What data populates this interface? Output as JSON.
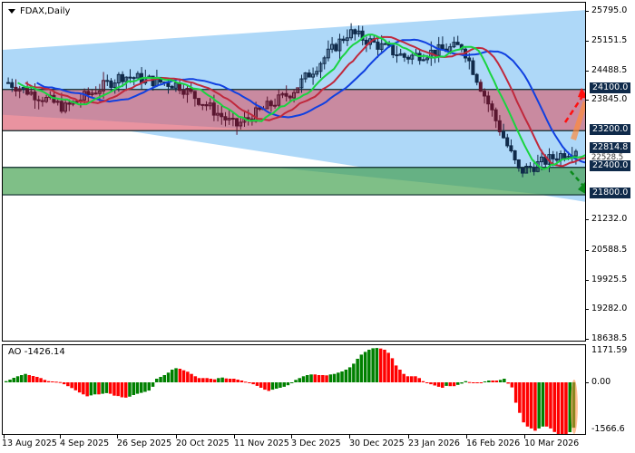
{
  "window": {
    "title": "FDAX,Daily"
  },
  "indicator": {
    "name": "AO",
    "value": "-1426.14",
    "label": "AO -1426.14"
  },
  "price_axis": {
    "ticks": [
      "25795.0",
      "25151.5",
      "24488.5",
      "23845.0",
      "22814.8",
      "22528.5",
      "21232.0",
      "20588.5",
      "19925.5",
      "19282.0",
      "18638.5"
    ],
    "highlighted": [
      "24100.0",
      "23200.0",
      "22400.0",
      "21800.0"
    ]
  },
  "ao_axis": {
    "ticks": [
      "1171.59",
      "0.00",
      "-1566.6"
    ]
  },
  "time_axis": {
    "labels": [
      "13 Aug 2025",
      "4 Sep 2025",
      "26 Sep 2025",
      "20 Oct 2025",
      "11 Nov 2025",
      "3 Dec 2025",
      "30 Dec 2025",
      "23 Jan 2026",
      "16 Feb 2026",
      "10 Mar 2026"
    ]
  },
  "colors": {
    "channel_fill": "#aed8f8",
    "resistance_zone": "#c98aa0",
    "support_zone": "#7fbf87",
    "bull_candle": "#0f2a4a",
    "bear_candle": "#5a1630",
    "ma_fast": "#19d440",
    "ma_mid": "#c0283c",
    "ma_slow": "#1040e0",
    "ao_up": "#008000",
    "ao_down": "#ff0000",
    "label_bg": "#0f2a4a"
  },
  "chart_data": [
    {
      "type": "candlestick",
      "title": "FDAX,Daily",
      "xlabel": "",
      "ylabel": "",
      "x_ticks": [
        "13 Aug 2025",
        "4 Sep 2025",
        "26 Sep 2025",
        "20 Oct 2025",
        "11 Nov 2025",
        "3 Dec 2025",
        "30 Dec 2025",
        "23 Jan 2026",
        "16 Feb 2026",
        "10 Mar 2026"
      ],
      "ylim": [
        18480,
        25950
      ],
      "y_ticks": [
        25795.0,
        25151.5,
        24488.5,
        23845.0,
        23200.0,
        22528.5,
        21232.0,
        20588.5,
        19925.5,
        19282.0,
        18638.5
      ],
      "current_price": 22814.8,
      "approx_close_path": [
        {
          "date": "13 Aug 2025",
          "close": 24250
        },
        {
          "date": "4 Sep 2025",
          "close": 23700
        },
        {
          "date": "26 Sep 2025",
          "close": 24400
        },
        {
          "date": "20 Oct 2025",
          "close": 24200
        },
        {
          "date": "11 Nov 2025",
          "close": 23300
        },
        {
          "date": "3 Dec 2025",
          "close": 24050
        },
        {
          "date": "30 Dec 2025",
          "close": 25350
        },
        {
          "date": "23 Jan 2026",
          "close": 24800
        },
        {
          "date": "16 Feb 2026",
          "close": 25050
        },
        {
          "date": "10 Mar 2026",
          "close": 22300
        },
        {
          "date": "last",
          "close": 22814.8
        }
      ],
      "levels": [
        {
          "name": "resistance_upper",
          "value": 24100.0
        },
        {
          "name": "resistance_lower",
          "value": 23200.0
        },
        {
          "name": "support_upper",
          "value": 22400.0
        },
        {
          "name": "support_lower",
          "value": 21800.0
        }
      ],
      "zones": [
        {
          "name": "resistance zone",
          "from": 23200.0,
          "to": 24100.0,
          "color": "#c98aa0"
        },
        {
          "name": "support zone",
          "from": 21800.0,
          "to": 22400.0,
          "color": "#7fbf87"
        }
      ],
      "series": [
        {
          "name": "MA fast (green)",
          "color": "#19d440"
        },
        {
          "name": "MA mid (red)",
          "color": "#c0283c"
        },
        {
          "name": "MA slow (blue)",
          "color": "#1040e0"
        }
      ],
      "annotations": [
        {
          "type": "arrow",
          "style": "dashed",
          "color": "red",
          "direction": "up",
          "target": 24100.0
        },
        {
          "type": "arrow",
          "style": "dashed",
          "color": "green",
          "direction": "down",
          "target": 21800.0
        },
        {
          "type": "channel",
          "color": "#aed8f8",
          "description": "expanding price channel"
        }
      ],
      "grid": false,
      "legend": "none"
    },
    {
      "type": "bar",
      "title": "AO -1426.14",
      "ylim": [
        -1566.6,
        1171.59
      ],
      "y_ticks": [
        1171.59,
        0.0,
        -1566.6
      ],
      "last_value": -1426.14,
      "colors": {
        "rising": "#008000",
        "falling": "#ff0000"
      },
      "values": [
        40,
        90,
        150,
        200,
        240,
        280,
        240,
        210,
        180,
        140,
        80,
        40,
        30,
        20,
        10,
        -60,
        -120,
        -180,
        -250,
        -320,
        -380,
        -440,
        -410,
        -380,
        -380,
        -360,
        -340,
        -360,
        -420,
        -430,
        -470,
        -480,
        -450,
        -400,
        -360,
        -330,
        -300,
        -260,
        -140,
        120,
        180,
        240,
        320,
        420,
        470,
        450,
        400,
        350,
        280,
        200,
        140,
        140,
        140,
        120,
        100,
        140,
        160,
        130,
        120,
        120,
        90,
        60,
        20,
        -20,
        -60,
        -110,
        -170,
        -230,
        -270,
        -230,
        -200,
        -170,
        -140,
        -90,
        -20,
        80,
        140,
        200,
        240,
        260,
        260,
        240,
        240,
        230,
        260,
        280,
        320,
        360,
        420,
        500,
        620,
        780,
        920,
        1010,
        1080,
        1130,
        1140,
        1120,
        1080,
        980,
        800,
        560,
        420,
        280,
        200,
        200,
        200,
        140,
        40,
        -20,
        -60,
        -100,
        -140,
        -170,
        -110,
        -120,
        -120,
        -80,
        -40,
        40,
        10,
        -10,
        -20,
        -20,
        30,
        60,
        60,
        60,
        80,
        120,
        -40,
        -160,
        -640,
        -960,
        -1260,
        -1390,
        -1450,
        -1520,
        -1450,
        -1390,
        -1390,
        -1450,
        -1560,
        -1640,
        -1740,
        -1820,
        -1566,
        -1426
      ],
      "xlabel": "",
      "ylabel": ""
    }
  ]
}
